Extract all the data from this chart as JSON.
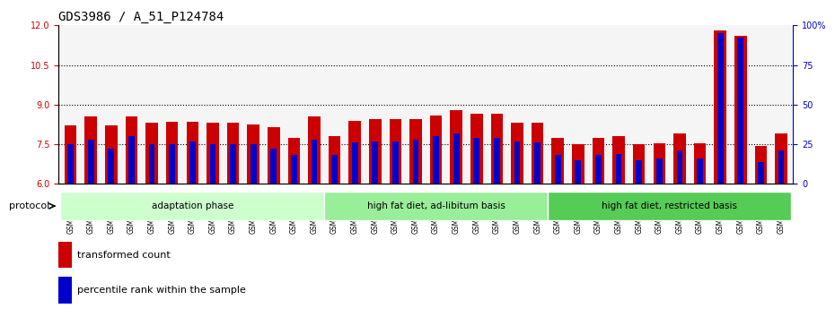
{
  "title": "GDS3986 / A_51_P124784",
  "samples": [
    "GSM672364",
    "GSM672365",
    "GSM672366",
    "GSM672367",
    "GSM672368",
    "GSM672369",
    "GSM672370",
    "GSM672371",
    "GSM672372",
    "GSM672373",
    "GSM672374",
    "GSM672375",
    "GSM672376",
    "GSM672377",
    "GSM672378",
    "GSM672379",
    "GSM672380",
    "GSM672381",
    "GSM672382",
    "GSM672383",
    "GSM672384",
    "GSM672385",
    "GSM672386",
    "GSM672387",
    "GSM672388",
    "GSM672389",
    "GSM672390",
    "GSM672391",
    "GSM672392",
    "GSM672393",
    "GSM672394",
    "GSM672395",
    "GSM672396",
    "GSM672397",
    "GSM672398",
    "GSM672399"
  ],
  "red_values": [
    8.2,
    8.55,
    8.2,
    8.55,
    8.3,
    8.35,
    8.35,
    8.3,
    8.3,
    8.25,
    8.15,
    7.75,
    8.55,
    7.8,
    8.4,
    8.45,
    8.45,
    8.45,
    8.6,
    8.8,
    8.65,
    8.65,
    8.3,
    8.3,
    7.75,
    7.5,
    7.75,
    7.8,
    7.5,
    7.55,
    7.9,
    7.55,
    11.8,
    11.6,
    7.45,
    7.9
  ],
  "blue_values": [
    25,
    28,
    22,
    30,
    25,
    25,
    27,
    25,
    25,
    25,
    22,
    18,
    28,
    18,
    26,
    27,
    27,
    28,
    30,
    32,
    29,
    29,
    27,
    26,
    18,
    15,
    18,
    19,
    15,
    16,
    21,
    16,
    95,
    92,
    14,
    21
  ],
  "ymin": 6,
  "ymax": 12,
  "yticks_left": [
    6,
    7.5,
    9,
    10.5,
    12
  ],
  "yticks_right": [
    0,
    25,
    50,
    75,
    100
  ],
  "grid_lines": [
    7.5,
    9,
    10.5
  ],
  "bar_color": "#cc0000",
  "blue_color": "#0000cc",
  "left_axis_color": "#cc0000",
  "right_axis_color": "#0000cc",
  "groups": [
    {
      "label": "adaptation phase",
      "start": 0,
      "end": 13,
      "color": "#ccffcc"
    },
    {
      "label": "high fat diet, ad-libitum basis",
      "start": 13,
      "end": 24,
      "color": "#99ee99"
    },
    {
      "label": "high fat diet, restricted basis",
      "start": 24,
      "end": 36,
      "color": "#55cc55"
    }
  ],
  "protocol_label": "protocol",
  "legend_red": "transformed count",
  "legend_blue": "percentile rank within the sample",
  "title_fontsize": 10,
  "tick_fontsize": 7,
  "label_fontsize": 8
}
